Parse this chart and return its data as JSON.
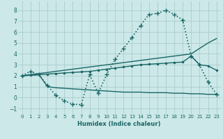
{
  "xlabel": "Humidex (Indice chaleur)",
  "background_color": "#cce8e8",
  "grid_color": "#aacccc",
  "line_color": "#1a6666",
  "xlim": [
    -0.5,
    23.5
  ],
  "ylim": [
    -1.5,
    8.8
  ],
  "yticks": [
    -1,
    0,
    1,
    2,
    3,
    4,
    5,
    6,
    7,
    8
  ],
  "xticks": [
    0,
    1,
    2,
    3,
    4,
    5,
    6,
    7,
    8,
    9,
    10,
    11,
    12,
    13,
    14,
    15,
    16,
    17,
    18,
    19,
    20,
    21,
    22,
    23
  ],
  "series": [
    {
      "x": [
        0,
        1,
        2,
        3,
        4,
        5,
        6,
        7,
        8,
        9,
        10,
        11,
        12,
        13,
        14,
        15,
        16,
        17,
        18,
        19,
        20,
        21,
        22,
        23
      ],
      "y": [
        2.0,
        2.4,
        2.1,
        1.1,
        0.2,
        -0.3,
        -0.6,
        -0.65,
        2.1,
        0.4,
        2.1,
        3.5,
        4.5,
        5.5,
        6.6,
        7.6,
        7.7,
        8.0,
        7.6,
        7.1,
        3.8,
        3.0,
        1.4,
        0.3
      ],
      "marker": "+",
      "linestyle": "dotted",
      "linewidth": 1.2,
      "markersize": 4
    },
    {
      "x": [
        0,
        1,
        2,
        3,
        4,
        5,
        6,
        7,
        8,
        9,
        10,
        11,
        12,
        13,
        14,
        15,
        16,
        17,
        18,
        19,
        20,
        21,
        22,
        23
      ],
      "y": [
        2.0,
        2.1,
        2.2,
        2.3,
        2.4,
        2.5,
        2.6,
        2.7,
        2.8,
        2.9,
        3.0,
        3.1,
        3.2,
        3.3,
        3.4,
        3.5,
        3.6,
        3.7,
        3.8,
        3.9,
        4.0,
        4.5,
        5.0,
        5.4
      ],
      "marker": null,
      "linestyle": "solid",
      "linewidth": 1.0,
      "markersize": 0
    },
    {
      "x": [
        0,
        1,
        2,
        3,
        4,
        5,
        6,
        7,
        8,
        9,
        10,
        11,
        12,
        13,
        14,
        15,
        16,
        17,
        18,
        19,
        20,
        21,
        22,
        23
      ],
      "y": [
        2.0,
        2.05,
        2.1,
        2.15,
        2.2,
        2.25,
        2.3,
        2.35,
        2.4,
        2.5,
        2.6,
        2.7,
        2.8,
        2.9,
        3.0,
        3.05,
        3.1,
        3.15,
        3.2,
        3.25,
        3.8,
        3.0,
        2.9,
        2.5
      ],
      "marker": ".",
      "linestyle": "solid",
      "linewidth": 1.0,
      "markersize": 3
    },
    {
      "x": [
        0,
        1,
        2,
        3,
        4,
        5,
        6,
        7,
        8,
        9,
        10,
        11,
        12,
        13,
        14,
        15,
        16,
        17,
        18,
        19,
        20,
        21,
        22,
        23
      ],
      "y": [
        2.0,
        2.05,
        2.1,
        1.0,
        0.9,
        0.85,
        0.8,
        0.75,
        0.7,
        0.65,
        0.6,
        0.55,
        0.5,
        0.5,
        0.5,
        0.45,
        0.45,
        0.45,
        0.4,
        0.4,
        0.35,
        0.35,
        0.3,
        0.3
      ],
      "marker": null,
      "linestyle": "solid",
      "linewidth": 1.0,
      "markersize": 0
    }
  ]
}
